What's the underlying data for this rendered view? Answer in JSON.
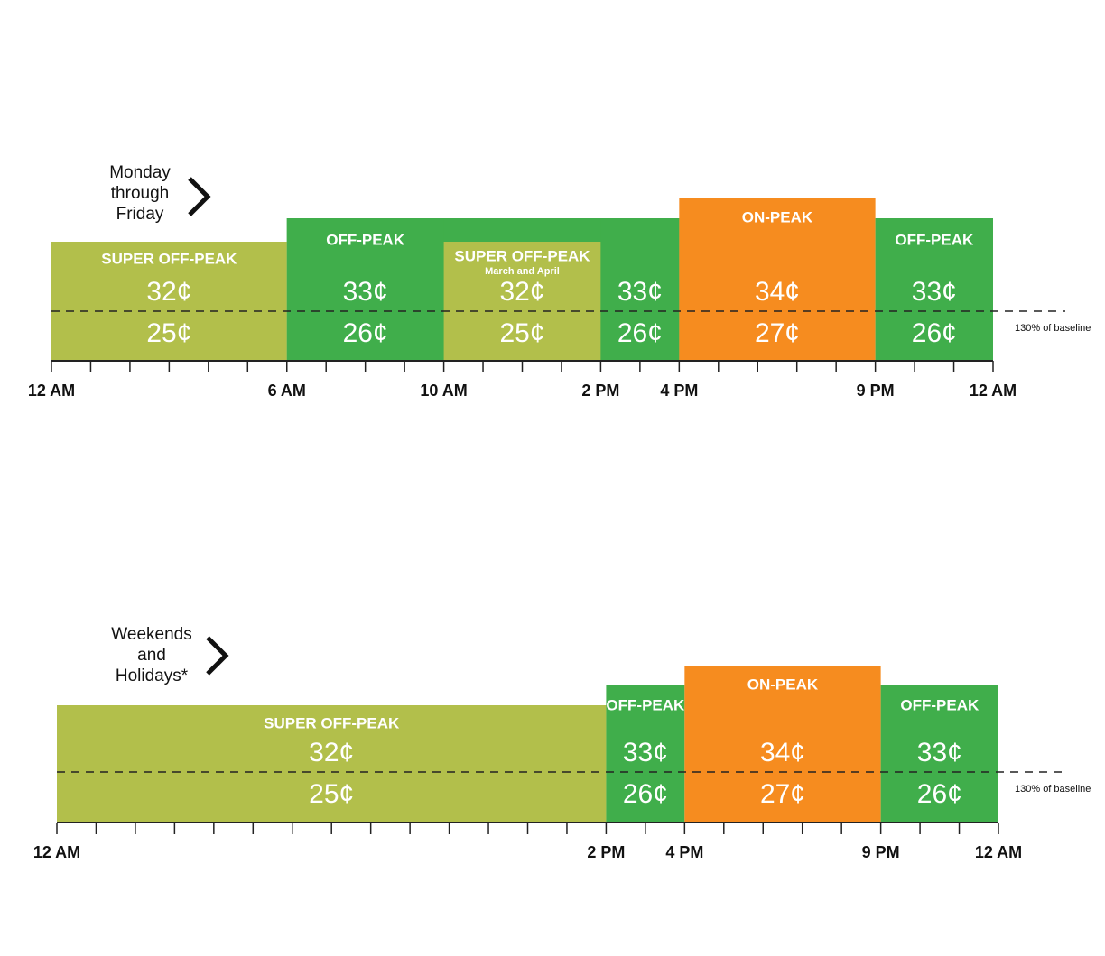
{
  "schedules": [
    {
      "heading_lines": [
        "Monday",
        "through",
        "Friday"
      ],
      "blocks": [
        {
          "label": "SUPER OFF-PEAK",
          "rate_high": "32¢",
          "rate_low": "25¢"
        },
        {
          "label": "OFF-PEAK",
          "rate_high": "33¢",
          "rate_low": "26¢"
        },
        {
          "label": "SUPER OFF-PEAK",
          "sublabel": "March and April",
          "rate_high": "32¢",
          "rate_low": "25¢"
        },
        {
          "rate_high": "33¢",
          "rate_low": "26¢"
        },
        {
          "label": "ON-PEAK",
          "rate_high": "34¢",
          "rate_low": "27¢"
        },
        {
          "label": "OFF-PEAK",
          "rate_high": "33¢",
          "rate_low": "26¢"
        }
      ],
      "baseline_label": "130% of baseline",
      "time_labels": [
        "12 AM",
        "6 AM",
        "10 AM",
        "2 PM",
        "4 PM",
        "9 PM",
        "12 AM"
      ]
    },
    {
      "heading_lines": [
        "Weekends",
        "and",
        "Holidays*"
      ],
      "blocks": [
        {
          "label": "SUPER OFF-PEAK",
          "rate_high": "32¢",
          "rate_low": "25¢"
        },
        {
          "label": "OFF-PEAK",
          "rate_high": "33¢",
          "rate_low": "26¢"
        },
        {
          "label": "ON-PEAK",
          "rate_high": "34¢",
          "rate_low": "27¢"
        },
        {
          "label": "OFF-PEAK",
          "rate_high": "33¢",
          "rate_low": "26¢"
        }
      ],
      "baseline_label": "130% of baseline",
      "time_labels": [
        "12 AM",
        "2 PM",
        "4 PM",
        "9 PM",
        "12 AM"
      ]
    }
  ]
}
